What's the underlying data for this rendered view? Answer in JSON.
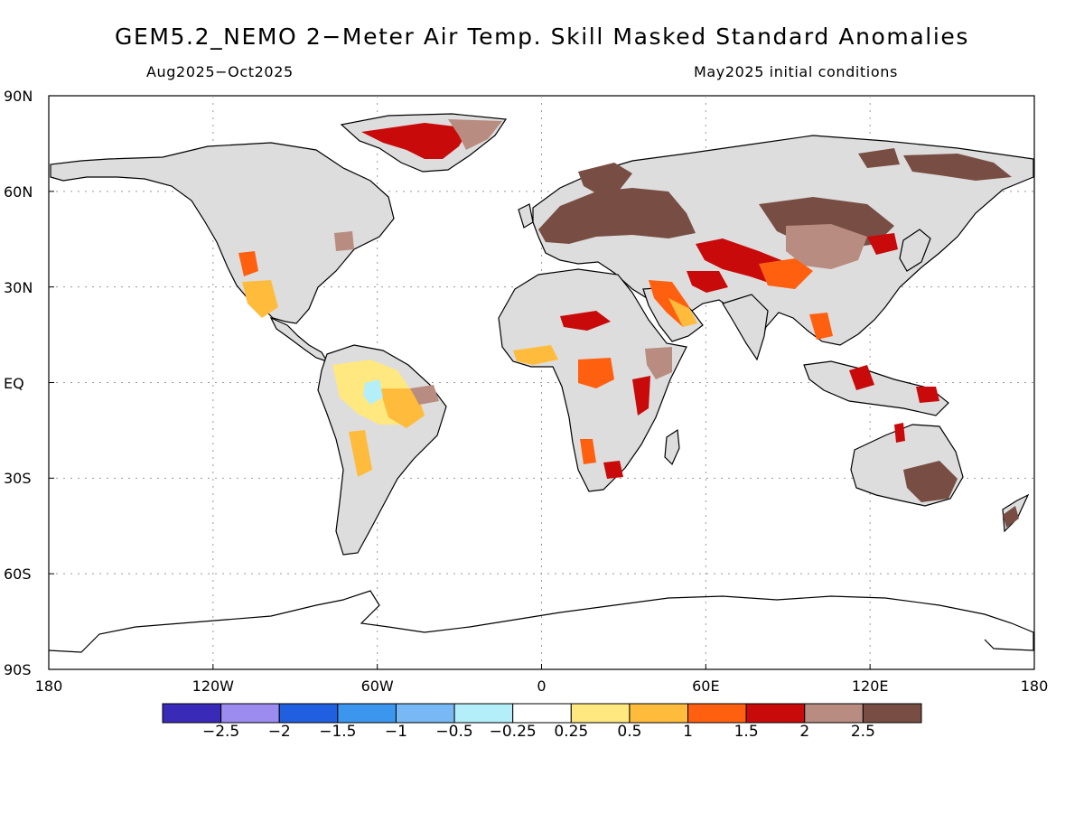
{
  "header": {
    "title": "GEM5.2_NEMO 2−Meter Air Temp. Skill Masked Standard Anomalies",
    "period": "Aug2025−Oct2025",
    "init": "May2025 initial conditions"
  },
  "axes": {
    "lat_labels": [
      "90N",
      "60N",
      "30N",
      "EQ",
      "30S",
      "60S",
      "90S"
    ],
    "lon_labels": [
      "180",
      "120W",
      "60W",
      "0",
      "60E",
      "120E",
      "180"
    ]
  },
  "colorbar": {
    "colors": [
      "#3a2ab8",
      "#9c8cf0",
      "#2060e0",
      "#3c96ee",
      "#78b8f4",
      "#b4eef8",
      "#ffffff",
      "#ffe880",
      "#ffbc3c",
      "#ff6010",
      "#c80a0a",
      "#b88c80",
      "#784e44"
    ],
    "labels": [
      "−2.5",
      "−2",
      "−1.5",
      "−1",
      "−0.5",
      "−0.25",
      "0.25",
      "0.5",
      "1",
      "1.5",
      "2",
      "2.5"
    ]
  },
  "legend": {
    "land_no_skill_color": "#dddddd"
  }
}
